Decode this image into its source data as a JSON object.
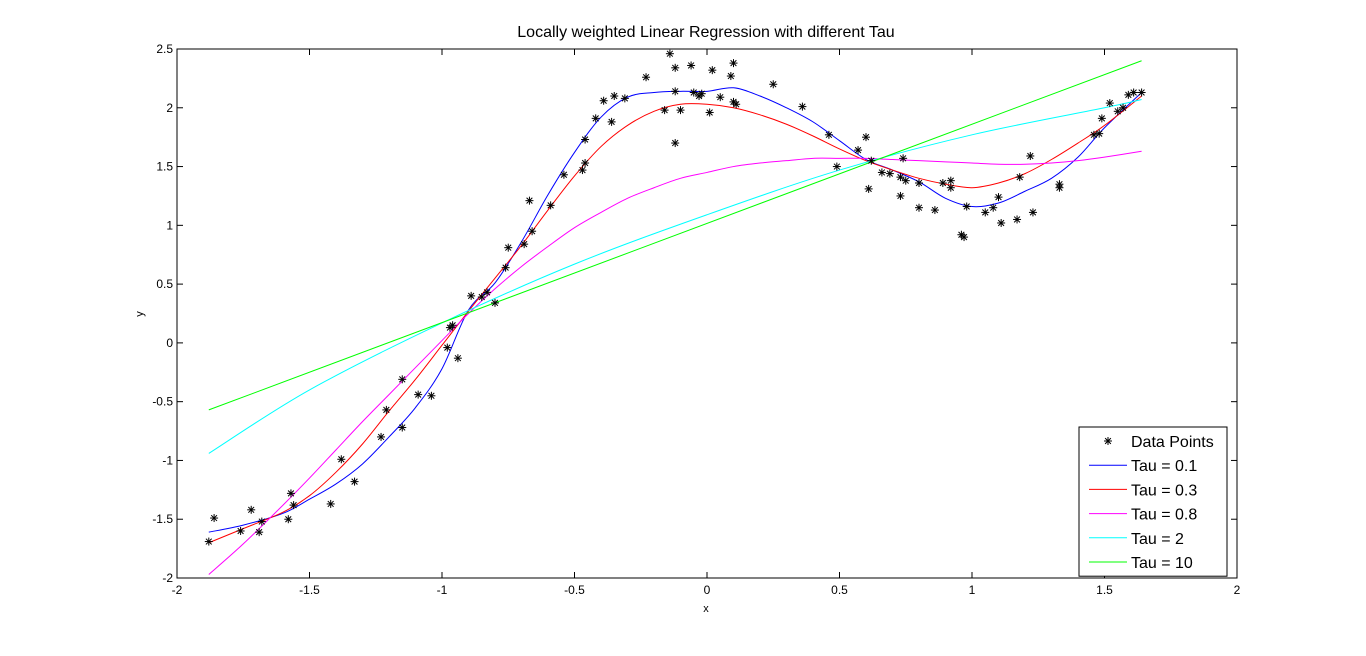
{
  "chart_data": {
    "type": "line",
    "title": "Locally weighted Linear Regression with different Tau",
    "xlabel": "x",
    "ylabel": "y",
    "xlim": [
      -2,
      2
    ],
    "ylim": [
      -2,
      2.5
    ],
    "xticks": [
      -2,
      -1.5,
      -1,
      -0.5,
      0,
      0.5,
      1,
      1.5,
      2
    ],
    "xtick_labels": [
      "-2",
      "-1.5",
      "-1",
      "-0.5",
      "0",
      "0.5",
      "1",
      "1.5",
      "2"
    ],
    "yticks": [
      -2,
      -1.5,
      -1,
      -0.5,
      0,
      0.5,
      1,
      1.5,
      2,
      2.5
    ],
    "ytick_labels": [
      "-2",
      "-1.5",
      "-1",
      "-0.5",
      "0",
      "0.5",
      "1",
      "1.5",
      "2",
      "2.5"
    ],
    "grid": false,
    "legend_placement": "bottom-right",
    "scatter": {
      "name": "Data Points",
      "color": "#000000",
      "points": [
        [
          -1.88,
          -1.69
        ],
        [
          -1.86,
          -1.49
        ],
        [
          -1.76,
          -1.6
        ],
        [
          -1.72,
          -1.42
        ],
        [
          -1.69,
          -1.61
        ],
        [
          -1.68,
          -1.52
        ],
        [
          -1.58,
          -1.5
        ],
        [
          -1.57,
          -1.28
        ],
        [
          -1.56,
          -1.38
        ],
        [
          -1.42,
          -1.37
        ],
        [
          -1.38,
          -0.99
        ],
        [
          -1.33,
          -1.18
        ],
        [
          -1.23,
          -0.8
        ],
        [
          -1.21,
          -0.57
        ],
        [
          -1.15,
          -0.31
        ],
        [
          -1.15,
          -0.72
        ],
        [
          -1.09,
          -0.44
        ],
        [
          -1.04,
          -0.45
        ],
        [
          -0.98,
          -0.04
        ],
        [
          -0.97,
          0.13
        ],
        [
          -0.96,
          0.15
        ],
        [
          -0.94,
          -0.13
        ],
        [
          -0.89,
          0.4
        ],
        [
          -0.85,
          0.39
        ],
        [
          -0.83,
          0.43
        ],
        [
          -0.8,
          0.34
        ],
        [
          -0.76,
          0.64
        ],
        [
          -0.75,
          0.81
        ],
        [
          -0.69,
          0.84
        ],
        [
          -0.67,
          1.21
        ],
        [
          -0.66,
          0.95
        ],
        [
          -0.59,
          1.17
        ],
        [
          -0.54,
          1.43
        ],
        [
          -0.47,
          1.47
        ],
        [
          -0.46,
          1.53
        ],
        [
          -0.46,
          1.73
        ],
        [
          -0.42,
          1.91
        ],
        [
          -0.39,
          2.06
        ],
        [
          -0.36,
          1.88
        ],
        [
          -0.35,
          2.1
        ],
        [
          -0.31,
          2.08
        ],
        [
          -0.23,
          2.26
        ],
        [
          -0.16,
          1.98
        ],
        [
          -0.14,
          2.46
        ],
        [
          -0.12,
          2.34
        ],
        [
          -0.12,
          2.14
        ],
        [
          -0.12,
          1.7
        ],
        [
          -0.1,
          1.98
        ],
        [
          -0.06,
          2.36
        ],
        [
          -0.05,
          2.13
        ],
        [
          -0.03,
          2.1
        ],
        [
          -0.02,
          2.12
        ],
        [
          0.01,
          1.96
        ],
        [
          0.02,
          2.32
        ],
        [
          0.05,
          2.09
        ],
        [
          0.09,
          2.27
        ],
        [
          0.1,
          2.38
        ],
        [
          0.1,
          2.05
        ],
        [
          0.11,
          2.03
        ],
        [
          0.25,
          2.2
        ],
        [
          0.36,
          2.01
        ],
        [
          0.46,
          1.77
        ],
        [
          0.49,
          1.5
        ],
        [
          0.57,
          1.64
        ],
        [
          0.6,
          1.75
        ],
        [
          0.61,
          1.31
        ],
        [
          0.62,
          1.55
        ],
        [
          0.66,
          1.45
        ],
        [
          0.69,
          1.44
        ],
        [
          0.73,
          1.41
        ],
        [
          0.73,
          1.25
        ],
        [
          0.74,
          1.57
        ],
        [
          0.75,
          1.38
        ],
        [
          0.8,
          1.36
        ],
        [
          0.8,
          1.15
        ],
        [
          0.86,
          1.13
        ],
        [
          0.89,
          1.36
        ],
        [
          0.92,
          1.38
        ],
        [
          0.92,
          1.32
        ],
        [
          0.96,
          0.92
        ],
        [
          0.97,
          0.9
        ],
        [
          0.98,
          1.16
        ],
        [
          1.05,
          1.11
        ],
        [
          1.08,
          1.15
        ],
        [
          1.1,
          1.24
        ],
        [
          1.11,
          1.02
        ],
        [
          1.17,
          1.05
        ],
        [
          1.18,
          1.41
        ],
        [
          1.22,
          1.59
        ],
        [
          1.23,
          1.11
        ],
        [
          1.33,
          1.32
        ],
        [
          1.33,
          1.35
        ],
        [
          1.46,
          1.77
        ],
        [
          1.48,
          1.78
        ],
        [
          1.49,
          1.91
        ],
        [
          1.52,
          2.04
        ],
        [
          1.55,
          1.97
        ],
        [
          1.57,
          2.0
        ],
        [
          1.59,
          2.11
        ],
        [
          1.61,
          2.13
        ],
        [
          1.64,
          2.13
        ]
      ]
    },
    "series": [
      {
        "name": "Tau = 0.1",
        "color": "#0000ff",
        "x": [
          -1.88,
          -1.75,
          -1.6,
          -1.5,
          -1.4,
          -1.3,
          -1.2,
          -1.1,
          -1.0,
          -0.9,
          -0.8,
          -0.7,
          -0.6,
          -0.5,
          -0.4,
          -0.3,
          -0.2,
          -0.1,
          0.0,
          0.1,
          0.2,
          0.3,
          0.4,
          0.5,
          0.6,
          0.7,
          0.8,
          0.9,
          1.0,
          1.1,
          1.2,
          1.3,
          1.4,
          1.5,
          1.64
        ],
        "y": [
          -1.61,
          -1.55,
          -1.45,
          -1.33,
          -1.2,
          -1.03,
          -0.8,
          -0.55,
          -0.22,
          0.28,
          0.51,
          0.86,
          1.26,
          1.62,
          1.92,
          2.09,
          2.13,
          2.14,
          2.14,
          2.17,
          2.1,
          2.0,
          1.88,
          1.72,
          1.56,
          1.47,
          1.37,
          1.23,
          1.16,
          1.19,
          1.29,
          1.4,
          1.58,
          1.83,
          2.13
        ]
      },
      {
        "name": "Tau = 0.3",
        "color": "#ff0000",
        "x": [
          -1.88,
          -1.75,
          -1.6,
          -1.5,
          -1.4,
          -1.3,
          -1.2,
          -1.1,
          -1.0,
          -0.9,
          -0.8,
          -0.7,
          -0.6,
          -0.5,
          -0.4,
          -0.3,
          -0.2,
          -0.1,
          0.0,
          0.1,
          0.2,
          0.3,
          0.4,
          0.5,
          0.6,
          0.7,
          0.8,
          0.9,
          1.0,
          1.1,
          1.2,
          1.3,
          1.4,
          1.5,
          1.64
        ],
        "y": [
          -1.7,
          -1.58,
          -1.44,
          -1.3,
          -1.1,
          -0.86,
          -0.58,
          -0.31,
          -0.02,
          0.27,
          0.55,
          0.83,
          1.13,
          1.42,
          1.67,
          1.85,
          1.97,
          2.03,
          2.03,
          2.0,
          1.94,
          1.86,
          1.76,
          1.65,
          1.55,
          1.47,
          1.4,
          1.35,
          1.32,
          1.36,
          1.44,
          1.56,
          1.7,
          1.85,
          2.1
        ]
      },
      {
        "name": "Tau = 0.8",
        "color": "#ff00ff",
        "x": [
          -1.88,
          -1.75,
          -1.6,
          -1.5,
          -1.4,
          -1.3,
          -1.2,
          -1.1,
          -1.0,
          -0.9,
          -0.8,
          -0.7,
          -0.6,
          -0.5,
          -0.4,
          -0.3,
          -0.2,
          -0.1,
          0.0,
          0.1,
          0.2,
          0.3,
          0.4,
          0.5,
          0.6,
          0.7,
          0.8,
          0.9,
          1.0,
          1.1,
          1.2,
          1.3,
          1.4,
          1.5,
          1.64
        ],
        "y": [
          -1.97,
          -1.71,
          -1.38,
          -1.15,
          -0.91,
          -0.67,
          -0.44,
          -0.21,
          0.02,
          0.25,
          0.46,
          0.65,
          0.82,
          0.98,
          1.11,
          1.23,
          1.32,
          1.4,
          1.45,
          1.5,
          1.53,
          1.55,
          1.57,
          1.57,
          1.57,
          1.56,
          1.55,
          1.54,
          1.53,
          1.52,
          1.52,
          1.53,
          1.55,
          1.58,
          1.63
        ]
      },
      {
        "name": "Tau = 2",
        "color": "#00ffff",
        "x": [
          -1.88,
          -1.5,
          -1.0,
          -0.5,
          0.0,
          0.5,
          1.0,
          1.5,
          1.64
        ],
        "y": [
          -0.94,
          -0.4,
          0.17,
          0.67,
          1.09,
          1.47,
          1.77,
          2.0,
          2.07
        ]
      },
      {
        "name": "Tau = 10",
        "color": "#00ff00",
        "x": [
          -1.88,
          1.64
        ],
        "y": [
          -0.57,
          2.4
        ]
      }
    ]
  }
}
